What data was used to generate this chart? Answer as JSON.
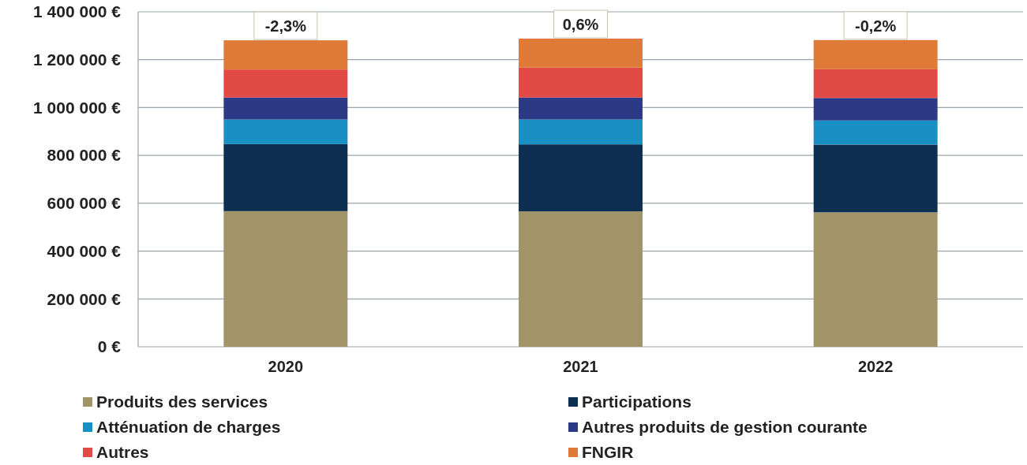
{
  "chart_data": {
    "type": "bar",
    "stacked": true,
    "categories": [
      "2020",
      "2021",
      "2022"
    ],
    "series": [
      {
        "name": "Produits des services",
        "color": "#a09468",
        "values": [
          567000,
          566000,
          562000
        ]
      },
      {
        "name": "Participations",
        "color": "#0d2f52",
        "values": [
          280000,
          280000,
          283000
        ]
      },
      {
        "name": "Atténuation de charges",
        "color": "#1a8fc4",
        "values": [
          103000,
          104000,
          101000
        ]
      },
      {
        "name": "Autres produits de gestion courante",
        "color": "#2c3a86",
        "values": [
          92000,
          92000,
          94000
        ]
      },
      {
        "name": "Autres",
        "color": "#e24a45",
        "values": [
          117000,
          125000,
          120000
        ]
      },
      {
        "name": "FNGIR",
        "color": "#e07a38",
        "values": [
          122000,
          121000,
          122000
        ]
      }
    ],
    "ylim": [
      0,
      1400000
    ],
    "yticks": [
      {
        "value": 0,
        "label": "0 €"
      },
      {
        "value": 200000,
        "label": "200 000 €"
      },
      {
        "value": 400000,
        "label": "400 000 €"
      },
      {
        "value": 600000,
        "label": "600 000 €"
      },
      {
        "value": 800000,
        "label": "800 000 €"
      },
      {
        "value": 1000000,
        "label": "1 000 000 €"
      },
      {
        "value": 1200000,
        "label": "1 200 000 €"
      },
      {
        "value": 1400000,
        "label": "1 400 000 €"
      }
    ],
    "grid": "y",
    "legend": "bottom",
    "annotations": [
      {
        "text": "-2,3%",
        "x": "2020",
        "y": 1281000
      },
      {
        "text": "0,6%",
        "x": "2021",
        "y": 1288000
      },
      {
        "text": "-0,2%",
        "x": "2022",
        "y": 1282000
      }
    ]
  }
}
